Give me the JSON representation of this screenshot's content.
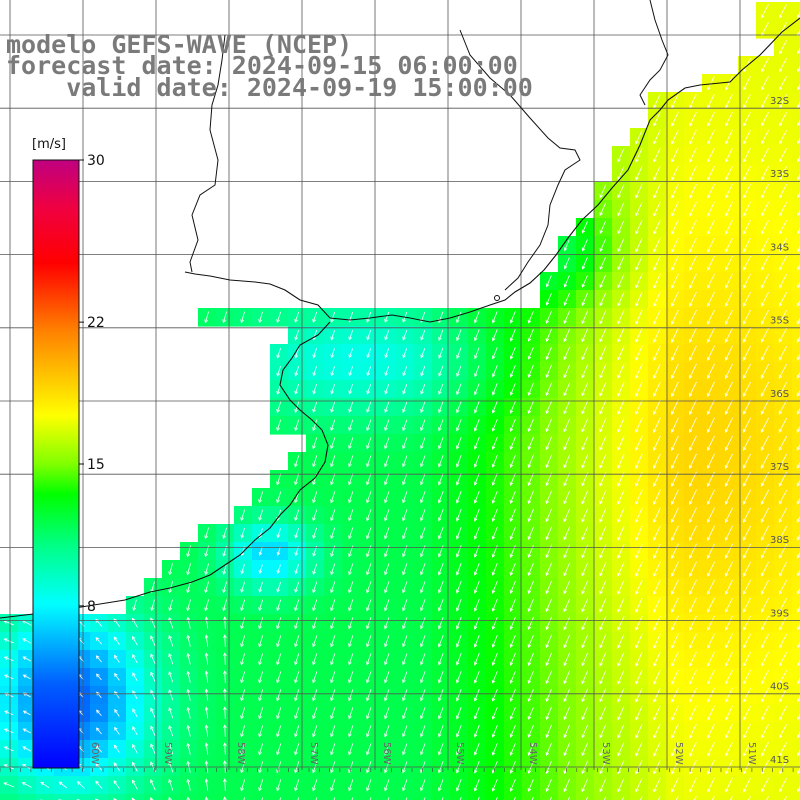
{
  "title": {
    "model": "modelo GEFS-WAVE (NCEP)",
    "forecast": "forecast date: 2024-09-15 06:00:00",
    "valid": "    valid date: 2024-09-19 15:00:00"
  },
  "colorbar": {
    "unit": "[m/s]",
    "ticks": [
      "30",
      "22",
      "15",
      "8"
    ],
    "tick_values": [
      30,
      22,
      15,
      8
    ],
    "range": [
      0,
      30
    ],
    "colors": [
      "#0000ff",
      "#0080ff",
      "#00ffff",
      "#00ff00",
      "#ffff00",
      "#ff8000",
      "#ff0000",
      "#c00080"
    ]
  },
  "axes": {
    "lat_labels": [
      "32S",
      "33S",
      "34S",
      "35S",
      "36S",
      "37S",
      "38S",
      "39S",
      "40S",
      "41S"
    ],
    "lon_labels": [
      "60W",
      "59W",
      "58W",
      "57W",
      "56W",
      "55W",
      "54W",
      "53W",
      "52W",
      "51W"
    ]
  },
  "chart_data": {
    "type": "heatmap",
    "title": "",
    "variable": "wind speed",
    "units": "m/s",
    "lat_range_deg": [
      -41.3,
      -31.3
    ],
    "lon_range_deg": [
      -61,
      -50.5
    ],
    "grid": true,
    "vectors": "white arrows, mostly pointing south-southwest over open ocean, northeast in the southwest corner",
    "regions": [
      {
        "area": "open ocean east of 53W, 33S-39S",
        "speed_ms": 17
      },
      {
        "area": "central shelf 55W-57W",
        "speed_ms": 12
      },
      {
        "area": "Rio de la Plata estuary",
        "speed_ms": 9
      },
      {
        "area": "coast near 38S-39S",
        "speed_ms": 6
      },
      {
        "area": "southwest corner near 60W 40S",
        "speed_ms": 3
      }
    ]
  }
}
